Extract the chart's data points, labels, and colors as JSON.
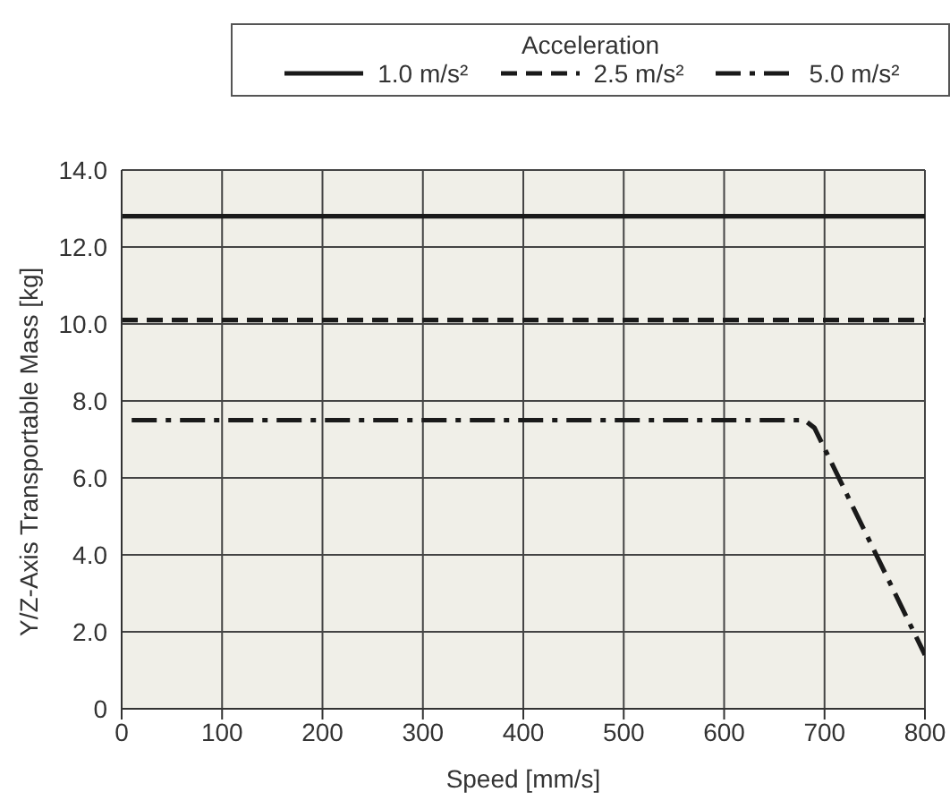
{
  "chart_data": {
    "type": "line",
    "xlabel": "Speed [mm/s]",
    "ylabel": "Y/Z-Axis Transportable Mass [kg]",
    "legend_title": "Acceleration",
    "legend": "top right",
    "grid": true,
    "marker": "none",
    "xlim": [
      0,
      800
    ],
    "xticks": [
      0,
      100,
      200,
      300,
      400,
      500,
      600,
      700,
      800
    ],
    "ylim": [
      0,
      14
    ],
    "yticks": [
      {
        "value": 0,
        "label": "0"
      },
      {
        "value": 2,
        "label": "2.0"
      },
      {
        "value": 4,
        "label": "4.0"
      },
      {
        "value": 6,
        "label": "6.0"
      },
      {
        "value": 8,
        "label": "8.0"
      },
      {
        "value": 10,
        "label": "10.0"
      },
      {
        "value": 12,
        "label": "12.0"
      },
      {
        "value": 14,
        "label": "14.0"
      }
    ],
    "series": [
      {
        "name": "1.0 m/s²",
        "color": "#1a1a1a",
        "line_style": "solid",
        "x": [
          0,
          800
        ],
        "values": [
          12.8,
          12.8
        ]
      },
      {
        "name": "2.5 m/s²",
        "color": "#1a1a1a",
        "line_style": "dashed",
        "x": [
          0,
          800
        ],
        "values": [
          10.1,
          10.1
        ]
      },
      {
        "name": "5.0 m/s²",
        "color": "#1a1a1a",
        "line_style": "dashdot",
        "x": [
          10,
          680,
          690,
          800
        ],
        "values": [
          7.5,
          7.5,
          7.3,
          1.4
        ]
      }
    ]
  }
}
